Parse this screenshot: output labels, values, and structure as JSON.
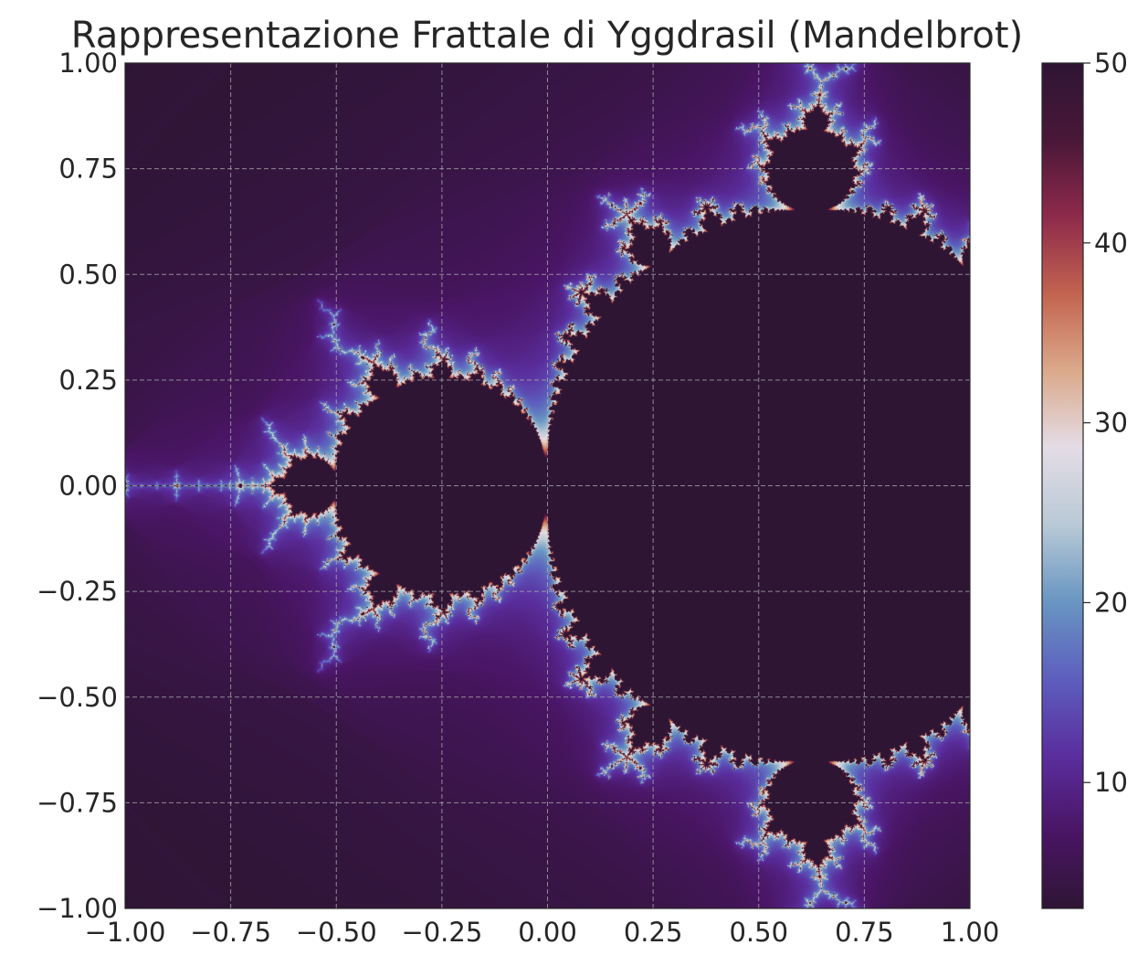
{
  "chart_data": {
    "type": "heatmap",
    "title": "Rappresentazione Frattale di Yggdrasil (Mandelbrot)",
    "xlabel": "",
    "ylabel": "",
    "x_range": [
      -1.0,
      1.0
    ],
    "y_range": [
      -1.0,
      1.0
    ],
    "x_ticks": [
      "−1.00",
      "−0.75",
      "−0.50",
      "−0.25",
      "0.00",
      "0.25",
      "0.50",
      "0.75",
      "1.00"
    ],
    "y_ticks": [
      "1.00",
      "0.75",
      "0.50",
      "0.25",
      "0.00",
      "−0.25",
      "−0.50",
      "−0.75",
      "−1.00"
    ],
    "x_tick_values": [
      -1.0,
      -0.75,
      -0.5,
      -0.25,
      0.0,
      0.25,
      0.5,
      0.75,
      1.0
    ],
    "y_tick_values": [
      1.0,
      0.75,
      0.5,
      0.25,
      0.0,
      -0.25,
      -0.5,
      -0.75,
      -1.0
    ],
    "grid": true,
    "grid_style": "dashed",
    "colormap": "twilight_shifted (upper half)",
    "colormap_stops": [
      "#2e1534",
      "#4a1565",
      "#5a2e9e",
      "#5d5fbe",
      "#6996c2",
      "#b9cad6",
      "#e4dce6",
      "#dba98a",
      "#c2634f",
      "#8e2a4b",
      "#4a1738",
      "#2e1534"
    ],
    "set_color": "#2e1534",
    "fractal": "mandelbrot",
    "complex_center": [
      -0.75,
      0.0
    ],
    "complex_half_extent": 1.0,
    "max_iterations": 50,
    "colorbar": {
      "min": 3,
      "max": 50,
      "ticks": [
        10,
        20,
        30,
        40,
        50
      ],
      "tick_labels": [
        "10",
        "20",
        "30",
        "40",
        "50"
      ]
    }
  }
}
